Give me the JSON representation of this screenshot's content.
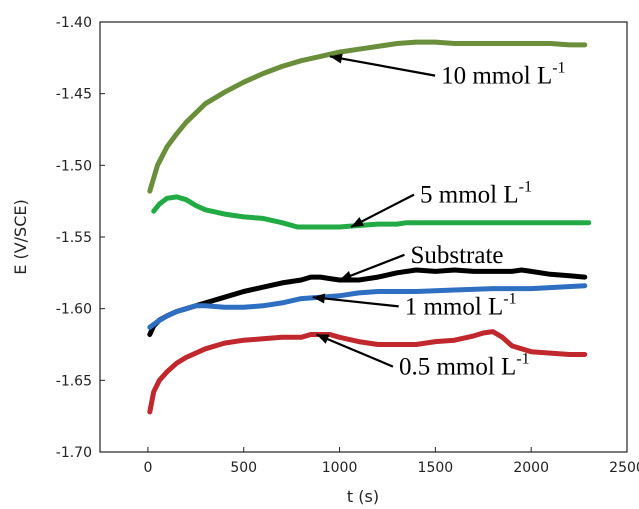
{
  "chart_data": {
    "type": "line",
    "xlabel": "t (s)",
    "ylabel": "E (V/SCE)",
    "xlim": [
      -250,
      2500
    ],
    "ylim": [
      -1.7,
      -1.4
    ],
    "xticks": [
      0,
      500,
      1000,
      1500,
      2000,
      2500
    ],
    "yticks": [
      -1.4,
      -1.45,
      -1.5,
      -1.55,
      -1.6,
      -1.65,
      -1.7
    ],
    "xtick_labels": [
      "0",
      "500",
      "1000",
      "1500",
      "2000",
      "2500"
    ],
    "ytick_labels": [
      "-1.40",
      "-1.45",
      "-1.50",
      "-1.55",
      "-1.60",
      "-1.65",
      "-1.70"
    ],
    "grid": false,
    "legend": "none",
    "series": [
      {
        "name": "10 mmol L-1",
        "color": "#6b8e3a",
        "x": [
          10,
          50,
          100,
          150,
          200,
          300,
          400,
          500,
          600,
          700,
          800,
          900,
          1000,
          1100,
          1200,
          1300,
          1400,
          1500,
          1600,
          1700,
          1800,
          1900,
          2000,
          2100,
          2200,
          2280
        ],
        "y": [
          -1.518,
          -1.5,
          -1.487,
          -1.478,
          -1.47,
          -1.457,
          -1.449,
          -1.442,
          -1.436,
          -1.431,
          -1.427,
          -1.424,
          -1.421,
          -1.419,
          -1.417,
          -1.415,
          -1.414,
          -1.414,
          -1.415,
          -1.415,
          -1.415,
          -1.415,
          -1.415,
          -1.415,
          -1.416,
          -1.416
        ]
      },
      {
        "name": "5 mmol L-1",
        "color": "#22aa44",
        "x": [
          30,
          60,
          100,
          150,
          200,
          250,
          300,
          400,
          500,
          600,
          700,
          780,
          850,
          1000,
          1100,
          1200,
          1300,
          1350,
          1400,
          1500,
          1700,
          2000,
          2300
        ],
        "y": [
          -1.532,
          -1.527,
          -1.523,
          -1.522,
          -1.524,
          -1.528,
          -1.531,
          -1.534,
          -1.536,
          -1.537,
          -1.54,
          -1.543,
          -1.543,
          -1.543,
          -1.542,
          -1.541,
          -1.541,
          -1.54,
          -1.54,
          -1.54,
          -1.54,
          -1.54,
          -1.54
        ]
      },
      {
        "name": "Substrate",
        "color": "#000000",
        "x": [
          10,
          30,
          60,
          100,
          150,
          200,
          300,
          400,
          500,
          600,
          700,
          800,
          850,
          900,
          950,
          1000,
          1050,
          1100,
          1200,
          1300,
          1400,
          1500,
          1600,
          1700,
          1800,
          1900,
          1950,
          2000,
          2100,
          2200,
          2280
        ],
        "y": [
          -1.618,
          -1.612,
          -1.608,
          -1.605,
          -1.602,
          -1.6,
          -1.596,
          -1.592,
          -1.588,
          -1.585,
          -1.582,
          -1.58,
          -1.578,
          -1.578,
          -1.579,
          -1.58,
          -1.58,
          -1.58,
          -1.578,
          -1.575,
          -1.573,
          -1.574,
          -1.573,
          -1.574,
          -1.574,
          -1.574,
          -1.573,
          -1.574,
          -1.576,
          -1.577,
          -1.578
        ]
      },
      {
        "name": "1 mmol L-1",
        "color": "#2f6fc2",
        "x": [
          10,
          50,
          100,
          150,
          200,
          250,
          300,
          400,
          500,
          600,
          700,
          800,
          900,
          1000,
          1100,
          1200,
          1400,
          1600,
          1800,
          2000,
          2280
        ],
        "y": [
          -1.613,
          -1.609,
          -1.605,
          -1.602,
          -1.6,
          -1.598,
          -1.598,
          -1.599,
          -1.599,
          -1.598,
          -1.596,
          -1.593,
          -1.592,
          -1.591,
          -1.589,
          -1.588,
          -1.588,
          -1.587,
          -1.586,
          -1.586,
          -1.584
        ]
      },
      {
        "name": "0.5 mmol L-1",
        "color": "#c0282d",
        "x": [
          10,
          30,
          60,
          100,
          150,
          200,
          300,
          400,
          500,
          600,
          700,
          800,
          850,
          900,
          950,
          1000,
          1100,
          1200,
          1300,
          1400,
          1500,
          1600,
          1700,
          1750,
          1800,
          1850,
          1900,
          2000,
          2100,
          2200,
          2280
        ],
        "y": [
          -1.672,
          -1.658,
          -1.65,
          -1.644,
          -1.638,
          -1.634,
          -1.628,
          -1.624,
          -1.622,
          -1.621,
          -1.62,
          -1.62,
          -1.618,
          -1.618,
          -1.618,
          -1.62,
          -1.623,
          -1.625,
          -1.625,
          -1.625,
          -1.623,
          -1.622,
          -1.619,
          -1.617,
          -1.616,
          -1.62,
          -1.626,
          -1.63,
          -1.631,
          -1.632,
          -1.632
        ]
      }
    ],
    "annotations": [
      {
        "key": "a10",
        "base": "10 mmol L",
        "sup": "-1",
        "point": [
          950,
          -1.424
        ],
        "text_at": [
          1530,
          -1.443
        ]
      },
      {
        "key": "a5",
        "base": "5 mmol L",
        "sup": "-1",
        "point": [
          1060,
          -1.543
        ],
        "text_at": [
          1420,
          -1.526
        ]
      },
      {
        "key": "asub",
        "base": "Substrate",
        "sup": "",
        "point": [
          1000,
          -1.58
        ],
        "text_at": [
          1370,
          -1.568
        ]
      },
      {
        "key": "a1",
        "base": "1 mmol L",
        "sup": "-1",
        "point": [
          860,
          -1.592
        ],
        "text_at": [
          1340,
          -1.604
        ]
      },
      {
        "key": "a05",
        "base": "0.5 mmol L",
        "sup": "-1",
        "point": [
          880,
          -1.618
        ],
        "text_at": [
          1310,
          -1.646
        ]
      }
    ]
  }
}
